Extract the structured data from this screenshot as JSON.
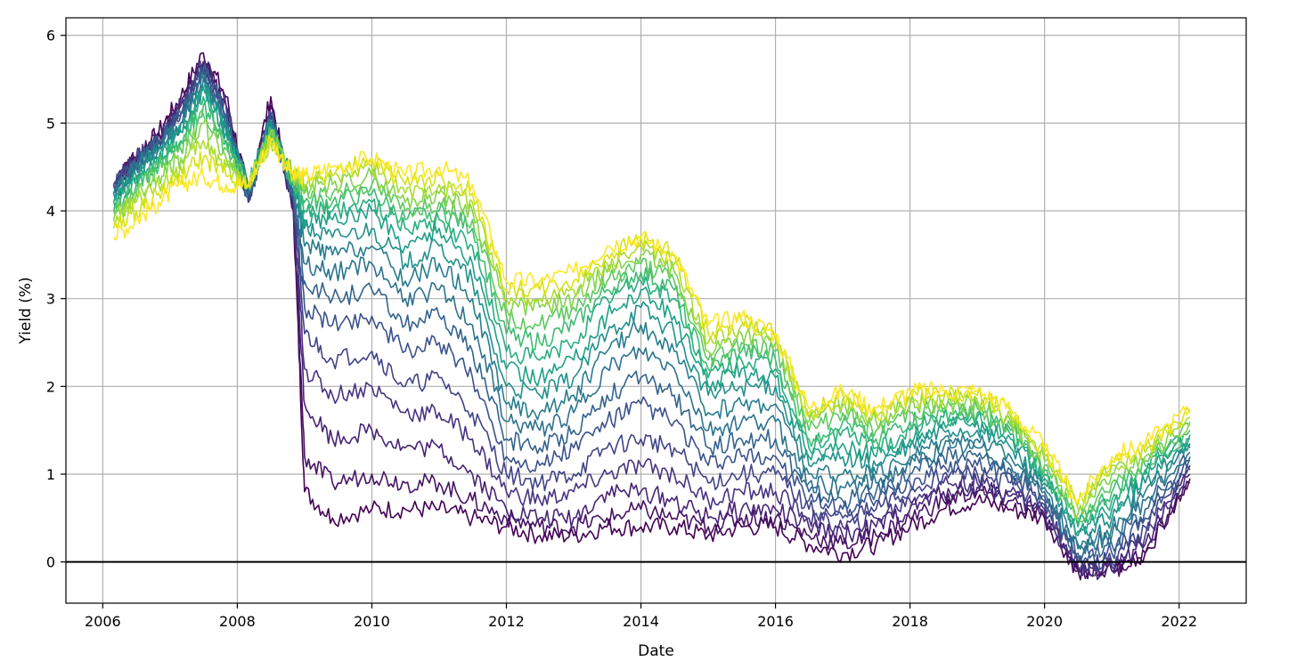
{
  "chart_data": {
    "type": "line",
    "title": "",
    "xlabel": "Date",
    "ylabel": "Yield (%)",
    "x_ticks": [
      "2006",
      "2008",
      "2010",
      "2012",
      "2014",
      "2016",
      "2018",
      "2020",
      "2022"
    ],
    "y_ticks": [
      "0",
      "1",
      "2",
      "3",
      "4",
      "5",
      "6"
    ],
    "xlim": [
      "2005-06-15",
      "2022-12-31"
    ],
    "ylim": [
      -0.47,
      6.2
    ],
    "grid": true,
    "reference_line": {
      "y": 0,
      "color": "#000000"
    },
    "colormap": "viridis",
    "x": [
      "2006-03-01",
      "2006-07-01",
      "2006-11-01",
      "2007-03-01",
      "2007-07-01",
      "2007-11-01",
      "2008-03-01",
      "2008-07-01",
      "2008-11-01",
      "2009-01-01",
      "2009-06-01",
      "2010-01-01",
      "2010-07-01",
      "2011-01-01",
      "2011-07-01",
      "2012-01-01",
      "2012-07-01",
      "2013-01-01",
      "2013-07-01",
      "2014-01-01",
      "2014-07-01",
      "2015-01-01",
      "2015-07-01",
      "2016-01-01",
      "2016-07-01",
      "2017-01-01",
      "2017-07-01",
      "2018-01-01",
      "2018-07-01",
      "2019-01-01",
      "2019-07-01",
      "2020-01-01",
      "2020-07-01",
      "2021-01-01",
      "2021-07-01",
      "2022-03-01"
    ],
    "series": [
      {
        "color": "#440154",
        "values": [
          4.3,
          4.6,
          4.9,
          5.3,
          5.8,
          5.3,
          4.2,
          5.3,
          4.0,
          0.8,
          0.5,
          0.6,
          0.6,
          0.6,
          0.5,
          0.4,
          0.3,
          0.3,
          0.4,
          0.4,
          0.4,
          0.3,
          0.4,
          0.4,
          0.2,
          0.1,
          0.2,
          0.4,
          0.6,
          0.7,
          0.6,
          0.5,
          -0.1,
          -0.1,
          0.1,
          0.9
        ]
      },
      {
        "color": "#471365",
        "values": [
          4.3,
          4.6,
          4.9,
          5.2,
          5.7,
          5.2,
          4.1,
          5.2,
          4.0,
          1.2,
          0.9,
          1.0,
          0.9,
          0.9,
          0.7,
          0.5,
          0.4,
          0.4,
          0.5,
          0.6,
          0.5,
          0.4,
          0.5,
          0.5,
          0.3,
          0.2,
          0.3,
          0.5,
          0.7,
          0.8,
          0.7,
          0.5,
          -0.1,
          -0.1,
          0.1,
          0.95
        ]
      },
      {
        "color": "#482475",
        "values": [
          4.3,
          4.6,
          4.8,
          5.2,
          5.7,
          5.2,
          4.1,
          5.1,
          4.0,
          1.8,
          1.4,
          1.5,
          1.3,
          1.3,
          1.0,
          0.6,
          0.5,
          0.5,
          0.8,
          0.8,
          0.7,
          0.5,
          0.6,
          0.6,
          0.4,
          0.3,
          0.4,
          0.6,
          0.8,
          0.85,
          0.75,
          0.55,
          -0.1,
          -0.1,
          0.2,
          1.0
        ]
      },
      {
        "color": "#463480",
        "values": [
          4.3,
          4.6,
          4.8,
          5.2,
          5.7,
          5.2,
          4.1,
          5.1,
          4.1,
          2.2,
          1.9,
          2.0,
          1.7,
          1.7,
          1.4,
          0.8,
          0.7,
          0.8,
          1.0,
          1.1,
          1.0,
          0.7,
          0.8,
          0.8,
          0.5,
          0.4,
          0.5,
          0.7,
          0.9,
          0.9,
          0.8,
          0.6,
          -0.05,
          -0.05,
          0.3,
          1.05
        ]
      },
      {
        "color": "#414487",
        "values": [
          4.3,
          4.6,
          4.8,
          5.1,
          5.6,
          5.1,
          4.1,
          5.1,
          4.1,
          2.6,
          2.3,
          2.4,
          2.0,
          2.1,
          1.7,
          1.0,
          0.9,
          1.0,
          1.3,
          1.4,
          1.3,
          0.9,
          1.0,
          1.0,
          0.6,
          0.5,
          0.6,
          0.8,
          1.0,
          1.0,
          0.9,
          0.65,
          0.0,
          0.0,
          0.4,
          1.1
        ]
      },
      {
        "color": "#3b528b",
        "values": [
          4.3,
          4.5,
          4.8,
          5.1,
          5.6,
          5.1,
          4.2,
          5.1,
          4.2,
          2.9,
          2.7,
          2.8,
          2.4,
          2.5,
          2.1,
          1.2,
          1.1,
          1.3,
          1.6,
          1.8,
          1.6,
          1.1,
          1.2,
          1.2,
          0.7,
          0.6,
          0.7,
          0.9,
          1.1,
          1.1,
          1.0,
          0.7,
          0.05,
          0.1,
          0.5,
          1.15
        ]
      },
      {
        "color": "#33638d",
        "values": [
          4.2,
          4.5,
          4.8,
          5.1,
          5.6,
          5.1,
          4.2,
          5.0,
          4.2,
          3.2,
          3.0,
          3.1,
          2.7,
          2.8,
          2.4,
          1.4,
          1.3,
          1.5,
          1.9,
          2.1,
          1.9,
          1.3,
          1.4,
          1.4,
          0.8,
          0.7,
          0.8,
          1.0,
          1.2,
          1.2,
          1.05,
          0.75,
          0.1,
          0.2,
          0.6,
          1.2
        ]
      },
      {
        "color": "#2c728e",
        "values": [
          4.2,
          4.5,
          4.7,
          5.0,
          5.5,
          5.0,
          4.2,
          5.0,
          4.2,
          3.4,
          3.3,
          3.4,
          3.0,
          3.1,
          2.7,
          1.6,
          1.5,
          1.7,
          2.2,
          2.4,
          2.2,
          1.5,
          1.6,
          1.6,
          0.9,
          0.85,
          0.9,
          1.1,
          1.3,
          1.3,
          1.1,
          0.8,
          0.15,
          0.3,
          0.7,
          1.25
        ]
      },
      {
        "color": "#287d8e",
        "values": [
          4.2,
          4.5,
          4.7,
          5.0,
          5.5,
          5.0,
          4.2,
          5.0,
          4.3,
          3.6,
          3.5,
          3.6,
          3.2,
          3.4,
          3.0,
          1.8,
          1.7,
          1.9,
          2.4,
          2.7,
          2.4,
          1.7,
          1.8,
          1.8,
          1.0,
          1.0,
          1.0,
          1.2,
          1.4,
          1.4,
          1.2,
          0.85,
          0.2,
          0.4,
          0.8,
          1.3
        ]
      },
      {
        "color": "#21918c",
        "values": [
          4.2,
          4.4,
          4.7,
          4.9,
          5.4,
          4.9,
          4.3,
          5.0,
          4.3,
          3.8,
          3.7,
          3.8,
          3.4,
          3.6,
          3.2,
          2.0,
          1.9,
          2.1,
          2.6,
          2.9,
          2.6,
          1.9,
          2.0,
          2.0,
          1.1,
          1.2,
          1.1,
          1.3,
          1.5,
          1.5,
          1.3,
          0.9,
          0.3,
          0.5,
          0.9,
          1.35
        ]
      },
      {
        "color": "#1fa088",
        "values": [
          4.1,
          4.4,
          4.6,
          4.9,
          5.4,
          4.9,
          4.3,
          4.9,
          4.3,
          3.9,
          3.9,
          4.0,
          3.6,
          3.8,
          3.4,
          2.2,
          2.1,
          2.3,
          2.8,
          3.1,
          2.8,
          2.0,
          2.2,
          2.1,
          1.2,
          1.35,
          1.2,
          1.4,
          1.6,
          1.6,
          1.4,
          0.95,
          0.35,
          0.6,
          1.0,
          1.4
        ]
      },
      {
        "color": "#28ae80",
        "values": [
          4.1,
          4.3,
          4.6,
          4.8,
          5.3,
          4.8,
          4.3,
          4.9,
          4.3,
          4.0,
          4.0,
          4.1,
          3.8,
          3.9,
          3.6,
          2.4,
          2.3,
          2.5,
          3.0,
          3.2,
          3.0,
          2.1,
          2.3,
          2.2,
          1.3,
          1.5,
          1.3,
          1.5,
          1.65,
          1.65,
          1.45,
          1.0,
          0.4,
          0.7,
          1.05,
          1.45
        ]
      },
      {
        "color": "#3fbc73",
        "values": [
          4.0,
          4.3,
          4.5,
          4.8,
          5.2,
          4.8,
          4.3,
          4.9,
          4.3,
          4.1,
          4.1,
          4.2,
          3.9,
          4.0,
          3.8,
          2.6,
          2.5,
          2.7,
          3.1,
          3.3,
          3.1,
          2.2,
          2.4,
          2.3,
          1.4,
          1.6,
          1.4,
          1.6,
          1.7,
          1.7,
          1.5,
          1.05,
          0.45,
          0.8,
          1.1,
          1.5
        ]
      },
      {
        "color": "#5ec962",
        "values": [
          4.0,
          4.2,
          4.5,
          4.7,
          5.1,
          4.7,
          4.3,
          4.9,
          4.4,
          4.2,
          4.2,
          4.3,
          4.0,
          4.1,
          3.9,
          2.8,
          2.7,
          2.9,
          3.2,
          3.4,
          3.2,
          2.3,
          2.5,
          2.4,
          1.5,
          1.7,
          1.5,
          1.7,
          1.75,
          1.75,
          1.55,
          1.1,
          0.5,
          0.9,
          1.15,
          1.55
        ]
      },
      {
        "color": "#84d44b",
        "values": [
          3.9,
          4.2,
          4.4,
          4.6,
          5.0,
          4.6,
          4.3,
          4.9,
          4.4,
          4.3,
          4.3,
          4.4,
          4.1,
          4.2,
          4.0,
          2.9,
          2.9,
          3.0,
          3.3,
          3.5,
          3.3,
          2.4,
          2.6,
          2.5,
          1.6,
          1.8,
          1.6,
          1.8,
          1.8,
          1.8,
          1.6,
          1.15,
          0.55,
          1.0,
          1.2,
          1.6
        ]
      },
      {
        "color": "#addc30",
        "values": [
          3.9,
          4.1,
          4.3,
          4.5,
          4.8,
          4.5,
          4.3,
          4.8,
          4.4,
          4.3,
          4.4,
          4.5,
          4.2,
          4.3,
          4.1,
          3.0,
          3.0,
          3.1,
          3.4,
          3.6,
          3.4,
          2.5,
          2.7,
          2.55,
          1.65,
          1.85,
          1.65,
          1.85,
          1.85,
          1.85,
          1.65,
          1.2,
          0.6,
          1.1,
          1.25,
          1.65
        ]
      },
      {
        "color": "#d8e219",
        "values": [
          3.8,
          4.0,
          4.2,
          4.4,
          4.6,
          4.4,
          4.3,
          4.8,
          4.4,
          4.4,
          4.4,
          4.6,
          4.3,
          4.4,
          4.2,
          3.1,
          3.1,
          3.2,
          3.5,
          3.7,
          3.5,
          2.6,
          2.75,
          2.6,
          1.7,
          1.9,
          1.7,
          1.9,
          1.9,
          1.9,
          1.7,
          1.25,
          0.65,
          1.15,
          1.3,
          1.7
        ]
      },
      {
        "color": "#fde725",
        "values": [
          3.7,
          3.9,
          4.1,
          4.3,
          4.4,
          4.3,
          4.3,
          4.8,
          4.4,
          4.4,
          4.5,
          4.6,
          4.4,
          4.5,
          4.3,
          3.2,
          3.2,
          3.3,
          3.6,
          3.7,
          3.5,
          2.7,
          2.8,
          2.6,
          1.75,
          1.95,
          1.75,
          1.95,
          1.95,
          1.95,
          1.75,
          1.3,
          0.7,
          1.2,
          1.35,
          1.75
        ]
      }
    ]
  }
}
